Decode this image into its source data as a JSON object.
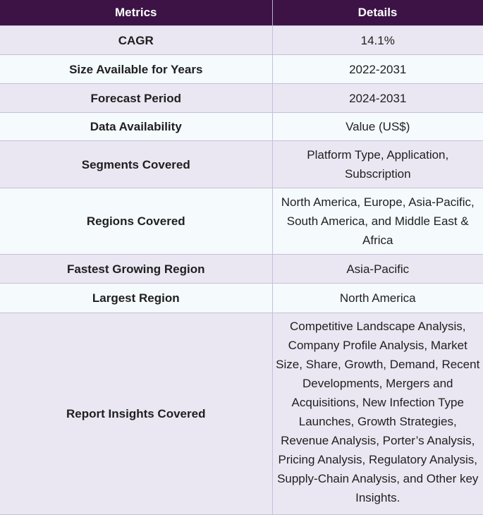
{
  "table": {
    "headers": [
      "Metrics",
      "Details"
    ],
    "rows": [
      {
        "metric": "CAGR",
        "detail": "14.1%"
      },
      {
        "metric": "Size Available for Years",
        "detail": "2022-2031"
      },
      {
        "metric": "Forecast Period",
        "detail": "2024-2031"
      },
      {
        "metric": "Data Availability",
        "detail": "Value (US$)"
      },
      {
        "metric": "Segments Covered",
        "detail": "Platform Type, Application, Subscription"
      },
      {
        "metric": "Regions Covered",
        "detail": "North America, Europe, Asia-Pacific, South America, and Middle East & Africa"
      },
      {
        "metric": "Fastest Growing Region",
        "detail": "Asia-Pacific"
      },
      {
        "metric": "Largest Region",
        "detail": "North America"
      },
      {
        "metric": "Report Insights Covered",
        "detail": "Competitive Landscape Analysis, Company Profile Analysis, Market Size, Share, Growth, Demand, Recent Developments, Mergers and Acquisitions, New Infection Type Launches, Growth Strategies, Revenue Analysis, Porter’s Analysis, Pricing Analysis, Regulatory Analysis, Supply-Chain Analysis, and Other key Insights."
      }
    ]
  },
  "colors": {
    "header_bg": "#3d1346",
    "row_alt_bg": "#eae7f2",
    "row_bg": "#f5fafd",
    "border": "#c5bfdc"
  }
}
